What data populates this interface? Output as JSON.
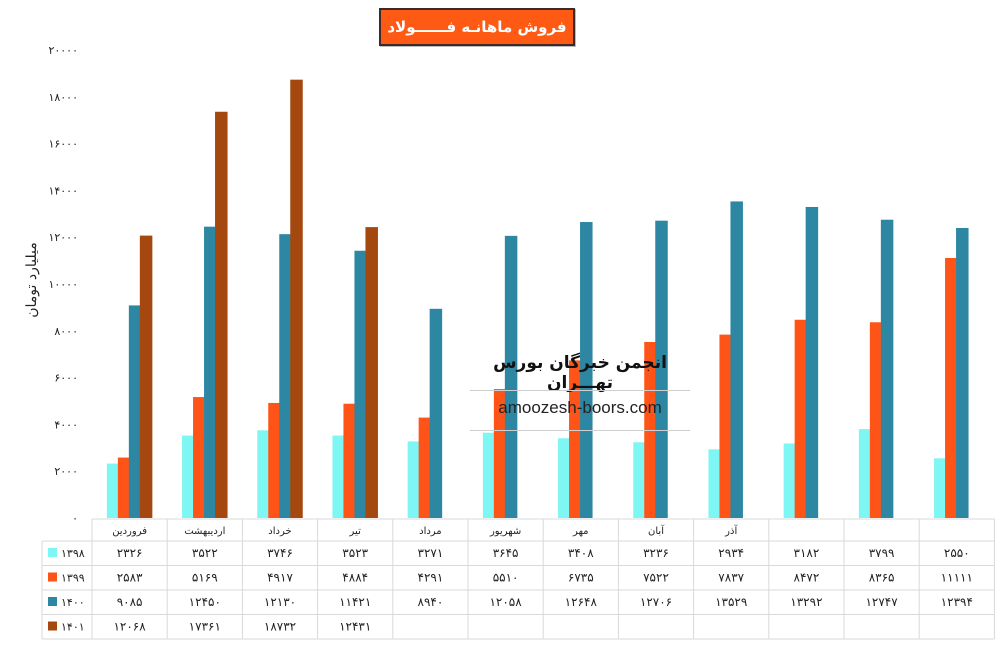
{
  "title": "فروش ماهانـه فــــــولاد",
  "ylabel": "میلیارد تومان",
  "watermark": {
    "name": "انجمن خبرگان بورس تهـــران",
    "url": "amoozesh-boors.com"
  },
  "colors": {
    "s1398": "#7ef6f4",
    "s1399": "#ff5417",
    "s1400": "#2d87a3",
    "s1401": "#a4480f",
    "title_bg": "#ff5a14"
  },
  "chart_data": {
    "type": "bar",
    "ylim": [
      0,
      20000
    ],
    "y_ticks": [
      "۰",
      "۲۰۰۰",
      "۴۰۰۰",
      "۶۰۰۰",
      "۸۰۰۰",
      "۱۰۰۰۰",
      "۱۲۰۰۰",
      "۱۴۰۰۰",
      "۱۶۰۰۰",
      "۱۸۰۰۰",
      "۲۰۰۰۰"
    ],
    "categories": [
      "فروردین",
      "اردیبهشت",
      "خرداد",
      "تیر",
      "مرداد",
      "شهریور",
      "مهر",
      "آبان",
      "آذر",
      "",
      "",
      ""
    ],
    "series": [
      {
        "name": "۱۳۹۸",
        "values": [
          2326,
          3522,
          3746,
          3523,
          3271,
          3645,
          3408,
          3236,
          2934,
          3182,
          3799,
          2550
        ],
        "labels": [
          "۲۳۲۶",
          "۳۵۲۲",
          "۳۷۴۶",
          "۳۵۲۳",
          "۳۲۷۱",
          "۳۶۴۵",
          "۳۴۰۸",
          "۳۲۳۶",
          "۲۹۳۴",
          "۳۱۸۲",
          "۳۷۹۹",
          "۲۵۵۰"
        ]
      },
      {
        "name": "۱۳۹۹",
        "values": [
          2583,
          5169,
          4917,
          4884,
          4291,
          5510,
          6735,
          7522,
          7837,
          8472,
          8365,
          11111
        ],
        "labels": [
          "۲۵۸۳",
          "۵۱۶۹",
          "۴۹۱۷",
          "۴۸۸۴",
          "۴۲۹۱",
          "۵۵۱۰",
          "۶۷۳۵",
          "۷۵۲۲",
          "۷۸۳۷",
          "۸۴۷۲",
          "۸۳۶۵",
          "۱۱۱۱۱"
        ]
      },
      {
        "name": "۱۴۰۰",
        "values": [
          9085,
          12450,
          12130,
          11421,
          8940,
          12058,
          12648,
          12706,
          13529,
          13292,
          12747,
          12394
        ],
        "labels": [
          "۹۰۸۵",
          "۱۲۴۵۰",
          "۱۲۱۳۰",
          "۱۱۴۲۱",
          "۸۹۴۰",
          "۱۲۰۵۸",
          "۱۲۶۴۸",
          "۱۲۷۰۶",
          "۱۳۵۲۹",
          "۱۳۲۹۲",
          "۱۲۷۴۷",
          "۱۲۳۹۴"
        ]
      },
      {
        "name": "۱۴۰۱",
        "values": [
          12068,
          17361,
          18732,
          12431,
          null,
          null,
          null,
          null,
          null,
          null,
          null,
          null
        ],
        "labels": [
          "۱۲۰۶۸",
          "۱۷۳۶۱",
          "۱۸۷۳۲",
          "۱۲۴۳۱",
          "",
          "",
          "",
          "",
          "",
          "",
          "",
          ""
        ]
      }
    ],
    "grid": false,
    "legend": "data-table-left"
  }
}
